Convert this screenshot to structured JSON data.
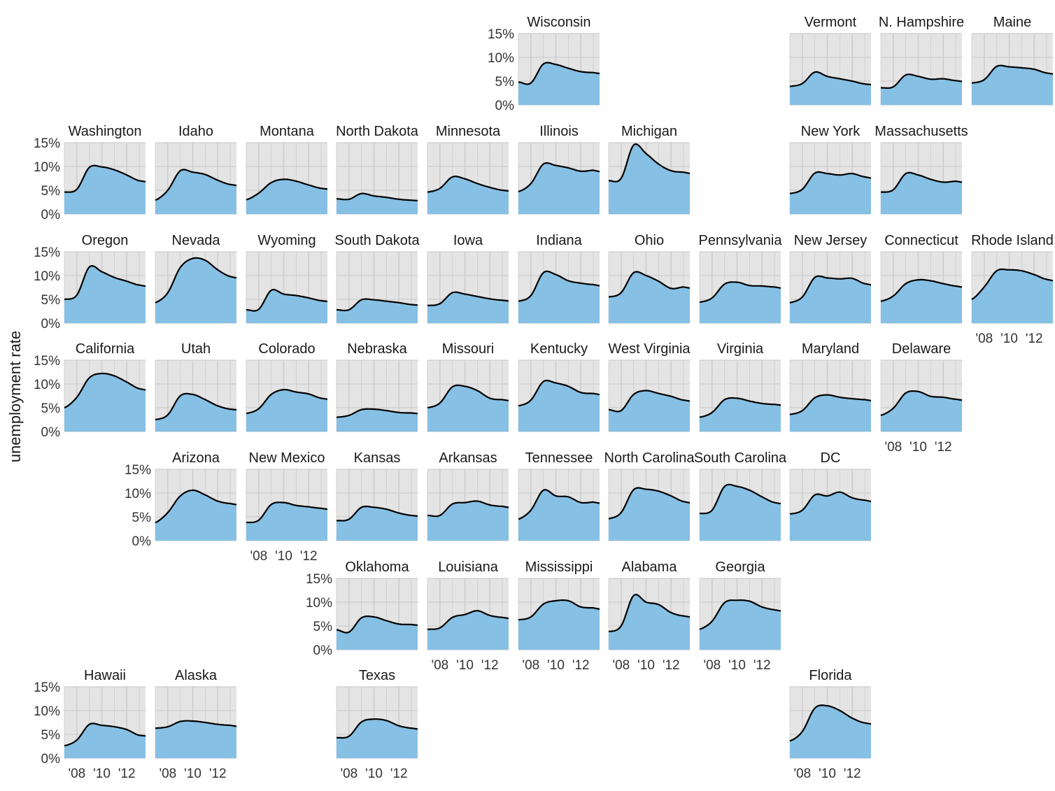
{
  "chart_data": {
    "type": "area",
    "layout": "faceted geographic grid",
    "ylabel": "unemployment rate",
    "ylim": [
      0,
      15
    ],
    "y_ticks": [
      "0%",
      "5%",
      "10%",
      "15%"
    ],
    "x_ticks": [
      "'08",
      "'10",
      "'12"
    ],
    "x_years": [
      2007,
      2008,
      2009,
      2010,
      2011,
      2012,
      2013
    ],
    "x_range": [
      2007,
      2013.5
    ],
    "colors": {
      "panel": "#e4e4e4",
      "grid": "#cdcdcd",
      "area": "#86c0e4",
      "line": "#000000"
    },
    "states": [
      {
        "name": "Wisconsin",
        "row": 0,
        "col": 5,
        "values": [
          4.8,
          4.6,
          8.6,
          8.5,
          7.7,
          7.0,
          6.8
        ]
      },
      {
        "name": "Vermont",
        "row": 0,
        "col": 8,
        "values": [
          3.9,
          4.5,
          6.9,
          6.0,
          5.5,
          5.0,
          4.4
        ]
      },
      {
        "name": "N. Hampshire",
        "row": 0,
        "col": 9,
        "values": [
          3.6,
          3.8,
          6.3,
          6.0,
          5.4,
          5.5,
          5.1
        ]
      },
      {
        "name": "Maine",
        "row": 0,
        "col": 10,
        "values": [
          4.6,
          5.3,
          8.1,
          8.0,
          7.8,
          7.5,
          6.7
        ]
      },
      {
        "name": "Washington",
        "row": 1,
        "col": 0,
        "values": [
          4.6,
          5.2,
          9.8,
          9.9,
          9.3,
          8.2,
          7.0
        ]
      },
      {
        "name": "Idaho",
        "row": 1,
        "col": 1,
        "values": [
          2.9,
          5.0,
          9.1,
          8.8,
          8.3,
          7.1,
          6.2
        ]
      },
      {
        "name": "Montana",
        "row": 1,
        "col": 2,
        "values": [
          3.0,
          4.4,
          6.6,
          7.3,
          6.9,
          6.1,
          5.4
        ]
      },
      {
        "name": "North Dakota",
        "row": 1,
        "col": 3,
        "values": [
          3.2,
          3.1,
          4.3,
          3.8,
          3.5,
          3.1,
          2.9
        ]
      },
      {
        "name": "Minnesota",
        "row": 1,
        "col": 4,
        "values": [
          4.6,
          5.4,
          7.8,
          7.4,
          6.4,
          5.6,
          5.0
        ]
      },
      {
        "name": "Illinois",
        "row": 1,
        "col": 5,
        "values": [
          4.7,
          6.4,
          10.5,
          10.2,
          9.7,
          9.0,
          9.2
        ]
      },
      {
        "name": "Michigan",
        "row": 1,
        "col": 6,
        "values": [
          7.0,
          7.5,
          14.5,
          12.7,
          10.5,
          9.1,
          8.8
        ]
      },
      {
        "name": "New York",
        "row": 1,
        "col": 8,
        "values": [
          4.3,
          5.2,
          8.6,
          8.5,
          8.2,
          8.5,
          7.8
        ]
      },
      {
        "name": "Massachusetts",
        "row": 1,
        "col": 9,
        "values": [
          4.6,
          5.1,
          8.5,
          8.2,
          7.3,
          6.7,
          6.9
        ]
      },
      {
        "name": "Oregon",
        "row": 2,
        "col": 0,
        "values": [
          5.0,
          5.9,
          11.8,
          10.8,
          9.6,
          8.8,
          8.0
        ]
      },
      {
        "name": "Nevada",
        "row": 2,
        "col": 1,
        "values": [
          4.3,
          6.4,
          11.7,
          13.6,
          13.2,
          11.2,
          9.8
        ]
      },
      {
        "name": "Wyoming",
        "row": 2,
        "col": 2,
        "values": [
          2.8,
          2.9,
          6.9,
          6.1,
          5.8,
          5.3,
          4.7
        ]
      },
      {
        "name": "South Dakota",
        "row": 2,
        "col": 3,
        "values": [
          2.8,
          2.8,
          4.9,
          4.9,
          4.6,
          4.3,
          3.9
        ]
      },
      {
        "name": "Iowa",
        "row": 2,
        "col": 4,
        "values": [
          3.7,
          4.1,
          6.4,
          6.1,
          5.6,
          5.1,
          4.8
        ]
      },
      {
        "name": "Indiana",
        "row": 2,
        "col": 5,
        "values": [
          4.6,
          5.8,
          10.6,
          10.2,
          8.9,
          8.4,
          8.1
        ]
      },
      {
        "name": "Ohio",
        "row": 2,
        "col": 6,
        "values": [
          5.5,
          6.4,
          10.6,
          10.0,
          8.8,
          7.3,
          7.6
        ]
      },
      {
        "name": "Pennsylvania",
        "row": 2,
        "col": 7,
        "values": [
          4.4,
          5.3,
          8.2,
          8.6,
          7.9,
          7.8,
          7.6
        ]
      },
      {
        "name": "New Jersey",
        "row": 2,
        "col": 8,
        "values": [
          4.3,
          5.5,
          9.6,
          9.5,
          9.3,
          9.4,
          8.3
        ]
      },
      {
        "name": "Connecticut",
        "row": 2,
        "col": 9,
        "values": [
          4.6,
          5.7,
          8.3,
          9.1,
          8.9,
          8.3,
          7.8
        ]
      },
      {
        "name": "Rhode Island",
        "row": 2,
        "col": 10,
        "values": [
          5.0,
          7.6,
          11.0,
          11.2,
          11.0,
          10.2,
          9.2
        ]
      },
      {
        "name": "California",
        "row": 3,
        "col": 0,
        "values": [
          5.0,
          7.2,
          11.3,
          12.2,
          11.7,
          10.4,
          9.0
        ]
      },
      {
        "name": "Utah",
        "row": 3,
        "col": 1,
        "values": [
          2.5,
          3.5,
          7.5,
          7.8,
          6.7,
          5.4,
          4.7
        ]
      },
      {
        "name": "Colorado",
        "row": 3,
        "col": 2,
        "values": [
          3.8,
          4.8,
          7.8,
          8.8,
          8.3,
          7.9,
          7.0
        ]
      },
      {
        "name": "Nebraska",
        "row": 3,
        "col": 3,
        "values": [
          3.0,
          3.4,
          4.6,
          4.7,
          4.4,
          4.0,
          3.9
        ]
      },
      {
        "name": "Missouri",
        "row": 3,
        "col": 4,
        "values": [
          5.0,
          6.0,
          9.4,
          9.5,
          8.6,
          7.0,
          6.7
        ]
      },
      {
        "name": "Kentucky",
        "row": 3,
        "col": 5,
        "values": [
          5.4,
          6.6,
          10.5,
          10.2,
          9.5,
          8.2,
          8.0
        ]
      },
      {
        "name": "West Virginia",
        "row": 3,
        "col": 6,
        "values": [
          4.6,
          4.4,
          7.8,
          8.6,
          8.0,
          7.4,
          6.6
        ]
      },
      {
        "name": "Virginia",
        "row": 3,
        "col": 7,
        "values": [
          3.0,
          4.0,
          6.7,
          7.0,
          6.4,
          5.9,
          5.7
        ]
      },
      {
        "name": "Maryland",
        "row": 3,
        "col": 8,
        "values": [
          3.6,
          4.4,
          7.1,
          7.7,
          7.2,
          6.9,
          6.7
        ]
      },
      {
        "name": "Delaware",
        "row": 3,
        "col": 9,
        "values": [
          3.4,
          4.9,
          8.1,
          8.4,
          7.4,
          7.2,
          6.8
        ]
      },
      {
        "name": "Arizona",
        "row": 4,
        "col": 1,
        "values": [
          3.8,
          5.9,
          9.4,
          10.6,
          9.6,
          8.3,
          7.8
        ]
      },
      {
        "name": "New Mexico",
        "row": 4,
        "col": 2,
        "values": [
          3.8,
          4.3,
          7.6,
          8.0,
          7.4,
          7.1,
          6.8
        ]
      },
      {
        "name": "Kansas",
        "row": 4,
        "col": 3,
        "values": [
          4.2,
          4.5,
          7.0,
          7.0,
          6.6,
          5.8,
          5.3
        ]
      },
      {
        "name": "Arkansas",
        "row": 4,
        "col": 4,
        "values": [
          5.3,
          5.3,
          7.7,
          8.0,
          8.3,
          7.5,
          7.2
        ]
      },
      {
        "name": "Tennessee",
        "row": 4,
        "col": 5,
        "values": [
          4.5,
          6.4,
          10.6,
          9.4,
          9.2,
          8.0,
          8.1
        ]
      },
      {
        "name": "North Carolina",
        "row": 4,
        "col": 6,
        "values": [
          4.6,
          5.9,
          10.7,
          10.8,
          10.4,
          9.4,
          8.2
        ]
      },
      {
        "name": "South Carolina",
        "row": 4,
        "col": 7,
        "values": [
          5.7,
          6.4,
          11.4,
          11.4,
          10.6,
          9.2,
          8.0
        ]
      },
      {
        "name": "DC",
        "row": 4,
        "col": 8,
        "values": [
          5.6,
          6.4,
          9.6,
          9.4,
          10.2,
          9.0,
          8.5
        ]
      },
      {
        "name": "Oklahoma",
        "row": 5,
        "col": 3,
        "values": [
          4.2,
          3.7,
          6.7,
          6.9,
          6.1,
          5.4,
          5.3
        ]
      },
      {
        "name": "Louisiana",
        "row": 5,
        "col": 4,
        "values": [
          4.3,
          4.6,
          6.8,
          7.4,
          8.2,
          7.2,
          6.8
        ]
      },
      {
        "name": "Mississippi",
        "row": 5,
        "col": 5,
        "values": [
          6.3,
          6.9,
          9.6,
          10.3,
          10.3,
          9.0,
          8.8
        ]
      },
      {
        "name": "Alabama",
        "row": 5,
        "col": 6,
        "values": [
          3.8,
          5.0,
          11.4,
          10.0,
          9.5,
          7.8,
          7.1
        ]
      },
      {
        "name": "Georgia",
        "row": 5,
        "col": 7,
        "values": [
          4.3,
          6.0,
          9.9,
          10.4,
          10.2,
          9.0,
          8.4
        ]
      },
      {
        "name": "Hawaii",
        "row": 6,
        "col": 0,
        "values": [
          2.6,
          3.8,
          7.1,
          6.9,
          6.6,
          6.0,
          4.8
        ]
      },
      {
        "name": "Alaska",
        "row": 6,
        "col": 1,
        "values": [
          6.3,
          6.6,
          7.7,
          7.8,
          7.5,
          7.1,
          6.9
        ]
      },
      {
        "name": "Texas",
        "row": 6,
        "col": 3,
        "values": [
          4.3,
          4.6,
          7.6,
          8.2,
          7.9,
          6.8,
          6.3
        ]
      },
      {
        "name": "Florida",
        "row": 6,
        "col": 8,
        "values": [
          3.6,
          5.6,
          10.5,
          11.0,
          10.0,
          8.4,
          7.4
        ]
      }
    ],
    "y_axis_panels": [
      "Wisconsin",
      "Washington",
      "Oregon",
      "California",
      "Arizona",
      "Oklahoma",
      "Hawaii"
    ],
    "x_axis_panels": [
      "Rhode Island",
      "Delaware",
      "New Mexico",
      "Louisiana",
      "Mississippi",
      "Alabama",
      "Georgia",
      "Hawaii",
      "Alaska",
      "Texas",
      "Florida"
    ]
  }
}
